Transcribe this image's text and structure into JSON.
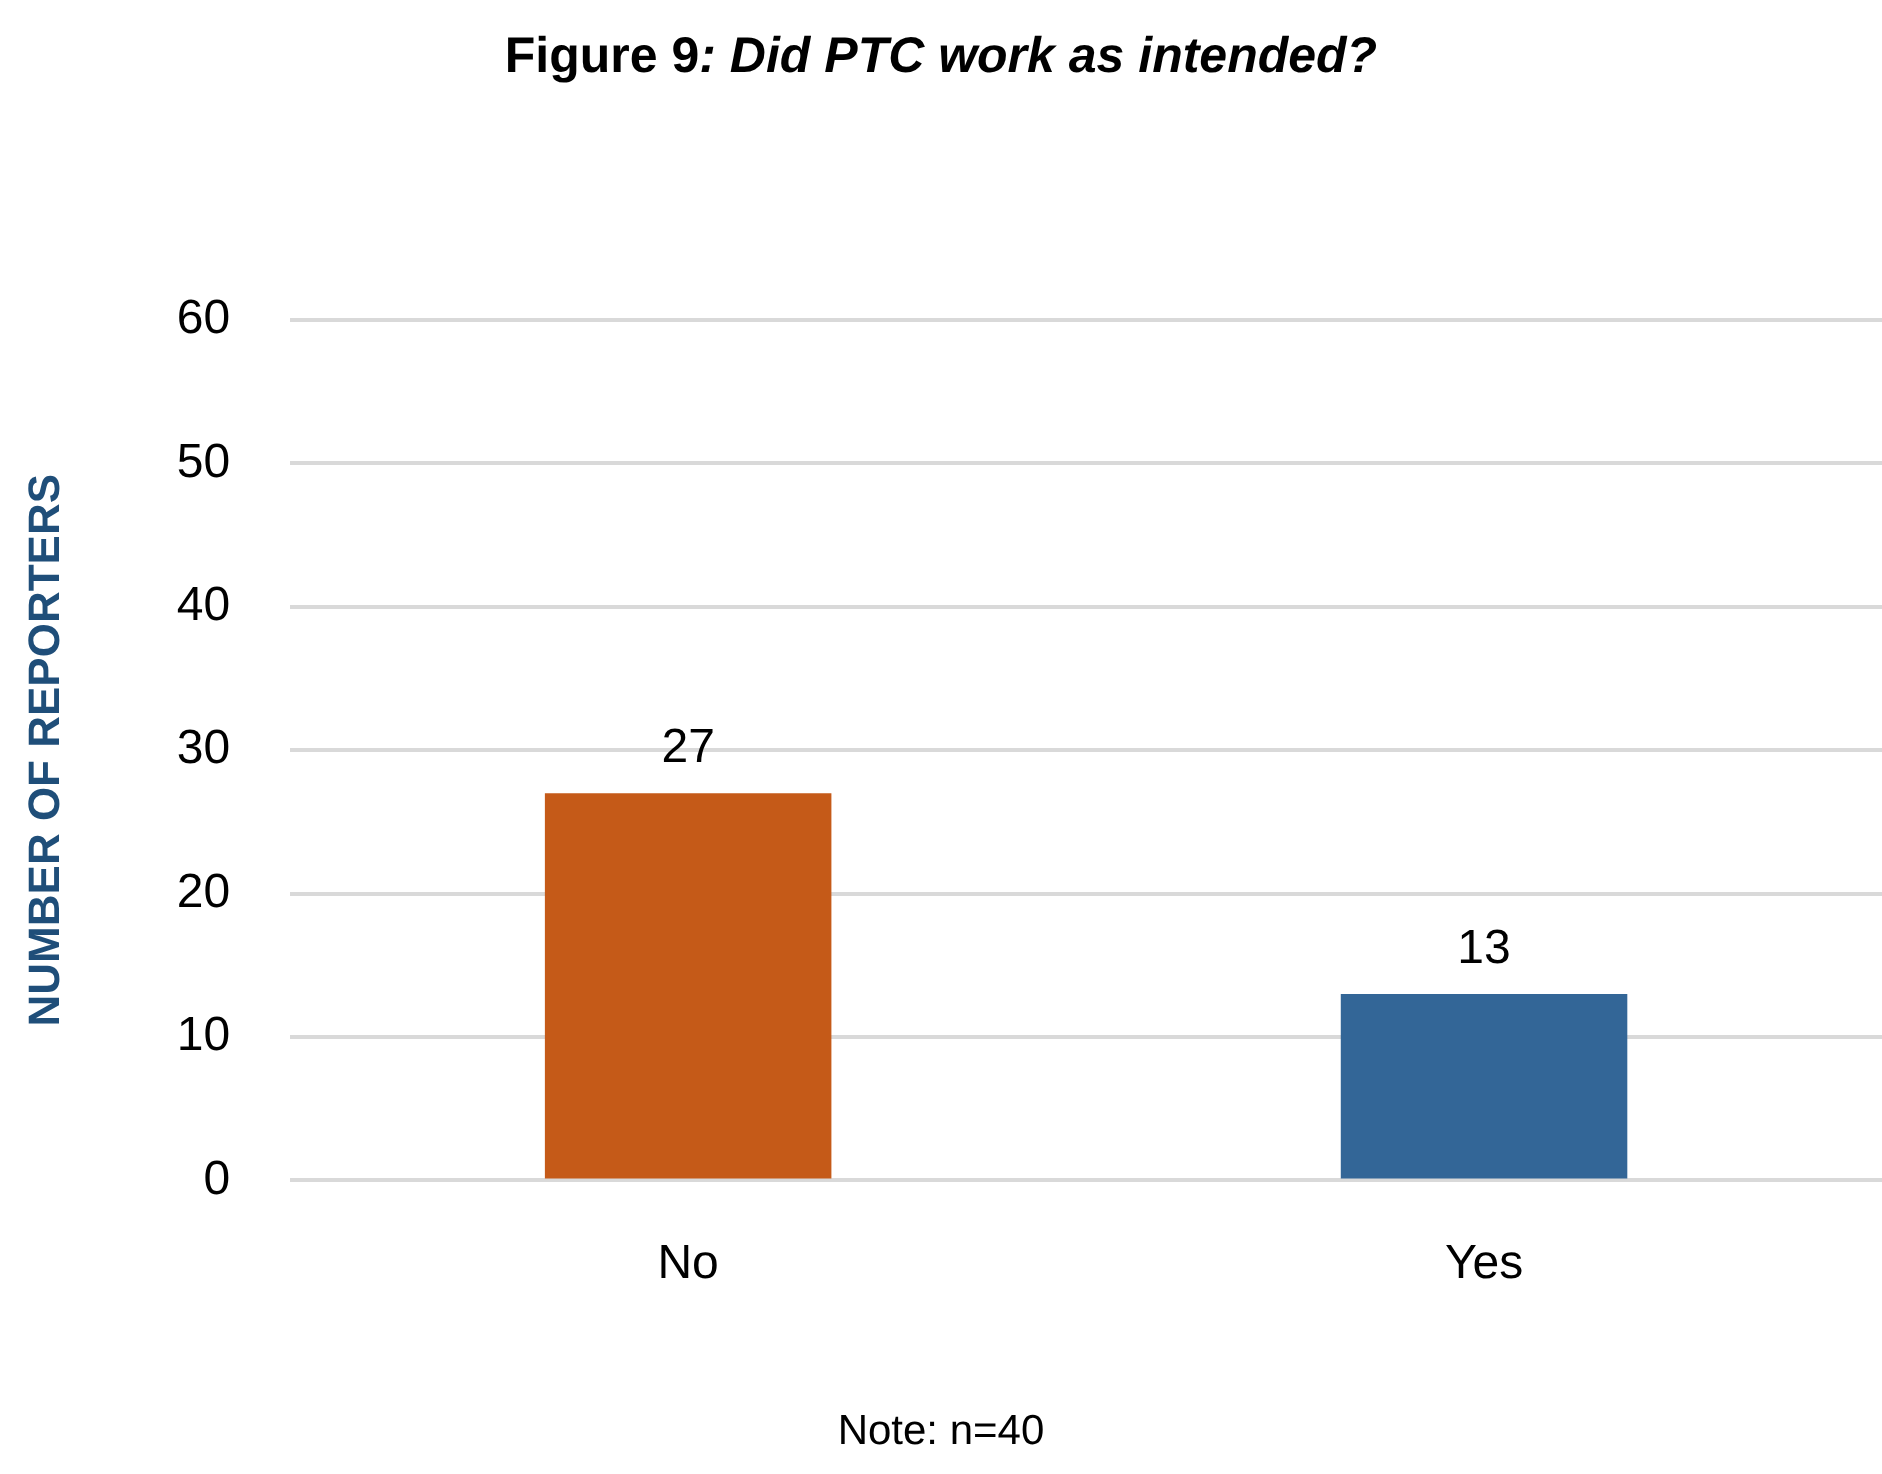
{
  "chart_data": {
    "type": "bar",
    "title": "Figure 9: Did PTC work as intended?",
    "ylabel": "NUMBER OF REPORTERS",
    "categories": [
      "No",
      "Yes"
    ],
    "values": [
      27,
      13
    ],
    "colors": [
      "#c55a18",
      "#336697"
    ],
    "ylim": [
      0,
      60
    ],
    "yticks": [
      0,
      10,
      20,
      30,
      40,
      50,
      60
    ],
    "grid": "y",
    "data_labels": true,
    "legend": false,
    "annotations": [
      "Note: n=40"
    ]
  }
}
